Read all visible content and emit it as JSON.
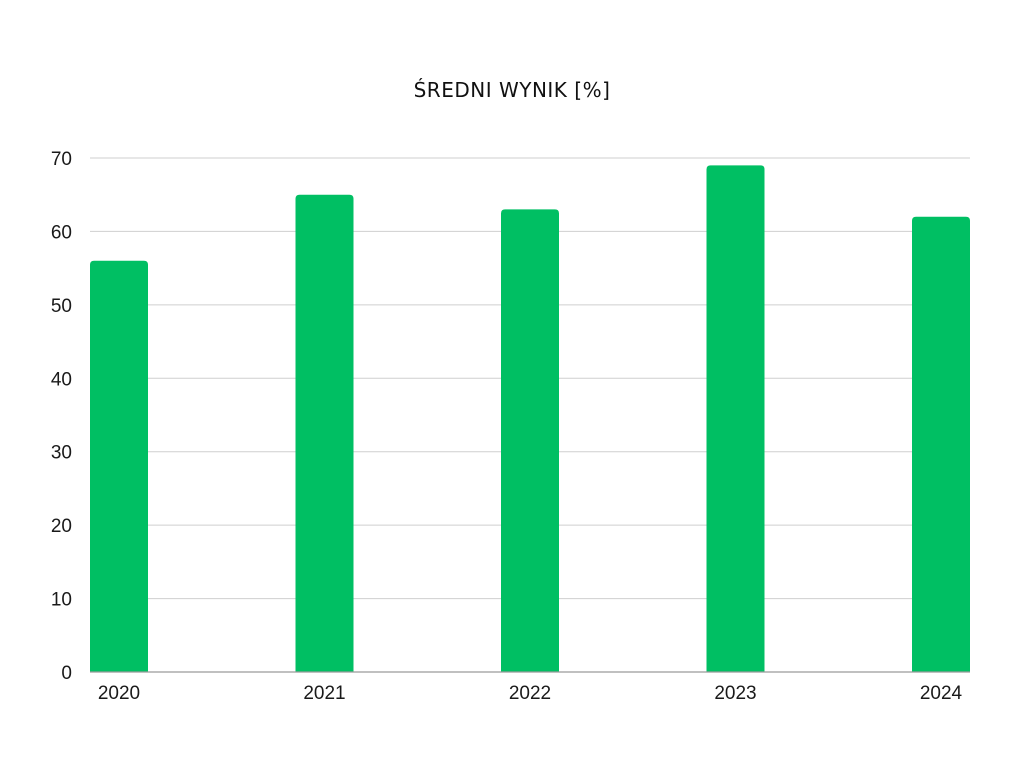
{
  "chart_data": {
    "type": "bar",
    "title": "ŚREDNI WYNIK [%]",
    "categories": [
      "2020",
      "2021",
      "2022",
      "2023",
      "2024"
    ],
    "series": [
      {
        "values": [
          56,
          65,
          63,
          69,
          62
        ],
        "color": "#00BF63"
      }
    ],
    "xlabel": "",
    "ylabel": "",
    "ylim": [
      0,
      70
    ],
    "yticks": [
      0,
      10,
      20,
      30,
      40,
      50,
      60,
      70
    ],
    "grid": true,
    "legend": "none"
  }
}
